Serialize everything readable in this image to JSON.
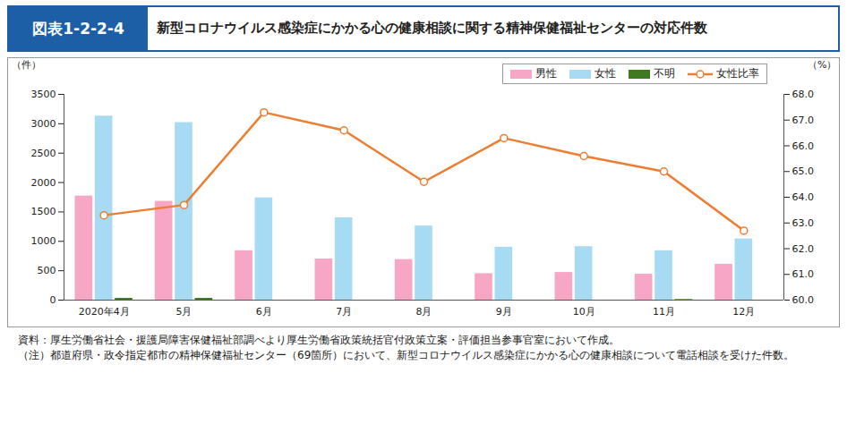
{
  "chart_data": {
    "type": "bar",
    "figure_number": "図表1-2-2-4",
    "title": "新型コロナウイルス感染症にかかる心の健康相談に関する精神保健福祉センターの対応件数",
    "categories": [
      "2020年4月",
      "5月",
      "6月",
      "7月",
      "8月",
      "9月",
      "10月",
      "11月",
      "12月"
    ],
    "series": [
      {
        "name": "男性",
        "color": "#f7a6c6",
        "values": [
          1770,
          1680,
          840,
          700,
          690,
          450,
          470,
          440,
          610
        ]
      },
      {
        "name": "女性",
        "color": "#a6dbf3",
        "values": [
          3130,
          3020,
          1740,
          1400,
          1260,
          900,
          910,
          840,
          1040
        ]
      },
      {
        "name": "不明",
        "color": "#3f7a22",
        "values": [
          30,
          30,
          0,
          0,
          0,
          0,
          0,
          10,
          0
        ]
      },
      {
        "name": "女性比率",
        "type": "line",
        "axis": "y2",
        "color": "#ed7d31",
        "marker": "circle",
        "line_style": "solid",
        "values": [
          63.3,
          63.7,
          67.3,
          66.6,
          64.6,
          66.3,
          65.6,
          65.0,
          62.7
        ]
      }
    ],
    "y_label": "（件）",
    "ylim": [
      0,
      3500
    ],
    "yticks": [
      0,
      500,
      1000,
      1500,
      2000,
      2500,
      3000,
      3500
    ],
    "y2_label": "（%）",
    "y2lim": [
      60,
      68
    ],
    "y2ticks": [
      {
        "value": 60,
        "label": "60.0"
      },
      {
        "value": 61,
        "label": "61.0"
      },
      {
        "value": 62,
        "label": "62.0"
      },
      {
        "value": 63,
        "label": "63.0"
      },
      {
        "value": 64,
        "label": "64.0"
      },
      {
        "value": 65,
        "label": "65.0"
      },
      {
        "value": 66,
        "label": "66.0"
      },
      {
        "value": 67,
        "label": "67.0"
      },
      {
        "value": 68,
        "label": "68.0"
      }
    ],
    "grid": false,
    "legend": "top-right",
    "notes": [
      {
        "label": "資料：",
        "text": "厚生労働省社会・援護局障害保健福祉部調べより厚生労働省政策統括官付政策立案・評価担当参事官室において作成。"
      },
      {
        "label": "（注）",
        "text": "都道府県・政令指定都市の精神保健福祉センター（69箇所）において、新型コロナウイルス感染症にかかる心の健康相談について電話相談を受けた件数。"
      }
    ]
  }
}
